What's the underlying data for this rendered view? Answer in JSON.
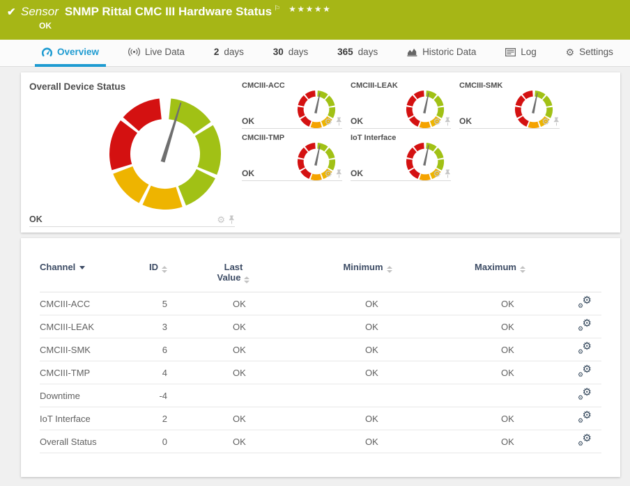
{
  "banner": {
    "bg_color": "#a6b616",
    "check_glyph": "✔",
    "kind_label": "Sensor",
    "title": "SNMP Rittal CMC III Hardware Status",
    "flag_glyph": "⚐",
    "stars": "★★★★★",
    "status": "OK"
  },
  "tabs": [
    {
      "id": "overview",
      "icon": "gauge-icon",
      "label": "Overview",
      "active": true
    },
    {
      "id": "live-data",
      "icon": "broadcast-icon",
      "label": "Live Data",
      "active": false
    },
    {
      "id": "2-days",
      "num": "2",
      "label": "days",
      "active": false
    },
    {
      "id": "30-days",
      "num": "30",
      "label": "days",
      "active": false
    },
    {
      "id": "365-days",
      "num": "365",
      "label": "days",
      "active": false
    },
    {
      "id": "historic-data",
      "icon": "chart-icon",
      "label": "Historic Data",
      "active": false
    },
    {
      "id": "log",
      "icon": "log-icon",
      "label": "Log",
      "active": false
    },
    {
      "id": "settings",
      "icon": "gear-icon",
      "label": "Settings",
      "active": false
    }
  ],
  "overview_panel": {
    "overall": {
      "title": "Overall Device Status",
      "status": "OK"
    },
    "channels": [
      {
        "title": "CMCIII-ACC",
        "status": "OK"
      },
      {
        "title": "CMCIII-LEAK",
        "status": "OK"
      },
      {
        "title": "CMCIII-SMK",
        "status": "OK"
      },
      {
        "title": "CMCIII-TMP",
        "status": "OK"
      },
      {
        "title": "IoT Interface",
        "status": "OK"
      }
    ],
    "colors": {
      "green": "#a1c115",
      "yellow": "#eeb400",
      "orange": "#f5a300",
      "red": "#d41111",
      "needle": "#6f6f6f"
    },
    "large_gauge": {
      "needle_deg": 17,
      "segments": [
        [
          "green",
          6,
          55
        ],
        [
          "green",
          59,
          112
        ],
        [
          "green",
          116,
          158
        ],
        [
          "yellow",
          162,
          204
        ],
        [
          "yellow",
          208,
          249
        ],
        [
          "red",
          253,
          307
        ],
        [
          "red",
          311,
          354
        ]
      ]
    },
    "small_gauge": {
      "needle_deg": 12,
      "segments": [
        [
          "green",
          4,
          38
        ],
        [
          "green",
          43,
          78
        ],
        [
          "green",
          83,
          118
        ],
        [
          "yellow",
          123,
          158
        ],
        [
          "orange",
          163,
          198
        ],
        [
          "red",
          203,
          238
        ],
        [
          "red",
          243,
          278
        ],
        [
          "red",
          283,
          318
        ],
        [
          "red",
          323,
          356
        ]
      ]
    }
  },
  "table": {
    "headers": {
      "channel": "Channel",
      "id": "ID",
      "last_value_line1": "Last",
      "last_value_line2": "Value",
      "minimum": "Minimum",
      "maximum": "Maximum"
    },
    "rows": [
      {
        "channel": "CMCIII-ACC",
        "id": "5",
        "last": "OK",
        "min": "OK",
        "max": "OK"
      },
      {
        "channel": "CMCIII-LEAK",
        "id": "3",
        "last": "OK",
        "min": "OK",
        "max": "OK"
      },
      {
        "channel": "CMCIII-SMK",
        "id": "6",
        "last": "OK",
        "min": "OK",
        "max": "OK"
      },
      {
        "channel": "CMCIII-TMP",
        "id": "4",
        "last": "OK",
        "min": "OK",
        "max": "OK"
      },
      {
        "channel": "Downtime",
        "id": "-4",
        "last": "",
        "min": "",
        "max": ""
      },
      {
        "channel": "IoT Interface",
        "id": "2",
        "last": "OK",
        "min": "OK",
        "max": "OK"
      },
      {
        "channel": "Overall Status",
        "id": "0",
        "last": "OK",
        "min": "OK",
        "max": "OK"
      }
    ]
  }
}
